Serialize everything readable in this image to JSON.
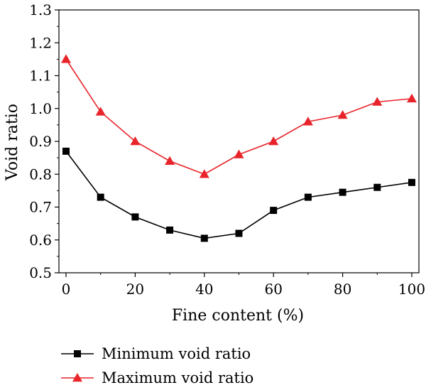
{
  "chart_data": {
    "type": "line",
    "xlabel": "Fine content (%)",
    "ylabel": "Void ratio",
    "xlim": [
      0,
      100
    ],
    "ylim": [
      0.5,
      1.3
    ],
    "x_ticks": [
      0,
      20,
      40,
      60,
      80,
      100
    ],
    "y_ticks": [
      0.5,
      0.6,
      0.7,
      0.8,
      0.9,
      1.0,
      1.1,
      1.2,
      1.3
    ],
    "y_tick_labels": [
      "0.5",
      "0.6",
      "0.7",
      "0.8",
      "0.9",
      "1.0",
      "1.1",
      "1.2",
      "1.3"
    ],
    "x": [
      0,
      10,
      20,
      30,
      40,
      50,
      60,
      70,
      80,
      90,
      100
    ],
    "grid": false,
    "legend_position": "bottom-left, below plot",
    "series": [
      {
        "name": "Minimum void ratio",
        "color": "#000000",
        "marker": "square",
        "values": [
          0.87,
          0.73,
          0.67,
          0.63,
          0.605,
          0.62,
          0.69,
          0.73,
          0.745,
          0.76,
          0.775
        ]
      },
      {
        "name": "Maximum void ratio",
        "color": "#e8232a",
        "marker": "triangle",
        "values": [
          1.15,
          0.99,
          0.9,
          0.84,
          0.8,
          0.86,
          0.9,
          0.96,
          0.98,
          1.02,
          1.03
        ]
      }
    ]
  }
}
